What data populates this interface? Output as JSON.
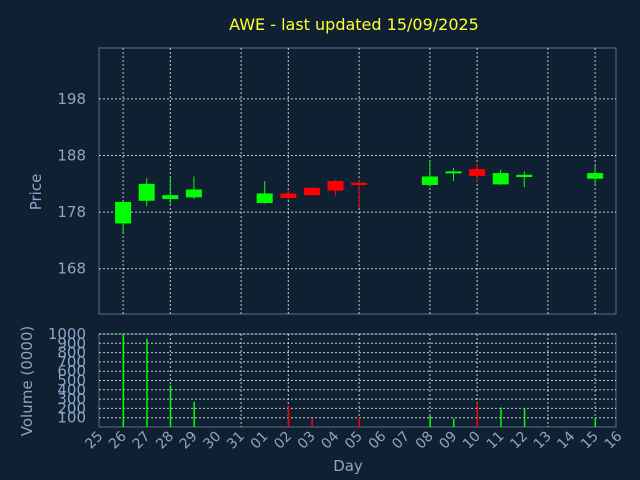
{
  "chart_data": [
    {
      "type": "candlestick",
      "title": "AWE - last updated 15/09/2025",
      "ylabel": "Price",
      "ylim": [
        160,
        207
      ],
      "yticks": [
        168,
        178,
        188,
        198
      ],
      "grid": true,
      "colors": {
        "up": "#00ff00",
        "down": "#ff0000"
      },
      "categories": [
        "25",
        "26",
        "27",
        "28",
        "29",
        "30",
        "31",
        "01",
        "02",
        "03",
        "04",
        "05",
        "06",
        "07",
        "08",
        "09",
        "10",
        "11",
        "12",
        "13",
        "14",
        "15",
        "16"
      ],
      "candles": [
        {
          "day": "26",
          "open": 176,
          "high": 180,
          "low": 174.5,
          "close": 179.8
        },
        {
          "day": "27",
          "open": 180,
          "high": 184,
          "low": 179,
          "close": 183
        },
        {
          "day": "28",
          "open": 180.3,
          "high": 184,
          "low": 179.5,
          "close": 181
        },
        {
          "day": "29",
          "open": 180.6,
          "high": 184.3,
          "low": 180.3,
          "close": 182
        },
        {
          "day": "01",
          "open": 179.6,
          "high": 183.5,
          "low": 179.5,
          "close": 181.3
        },
        {
          "day": "02",
          "open": 181.3,
          "high": 182,
          "low": 180.2,
          "close": 180.5
        },
        {
          "day": "03",
          "open": 182.3,
          "high": 182.5,
          "low": 180.8,
          "close": 181
        },
        {
          "day": "04",
          "open": 183.5,
          "high": 183.7,
          "low": 180.8,
          "close": 181.8
        },
        {
          "day": "05",
          "open": 183.2,
          "high": 183.7,
          "low": 178.7,
          "close": 182.8
        },
        {
          "day": "08",
          "open": 182.8,
          "high": 187,
          "low": 182.5,
          "close": 184.3
        },
        {
          "day": "09",
          "open": 184.9,
          "high": 185.8,
          "low": 183.5,
          "close": 185.2
        },
        {
          "day": "10",
          "open": 185.6,
          "high": 186.6,
          "low": 183.3,
          "close": 184.4
        },
        {
          "day": "11",
          "open": 182.9,
          "high": 185.5,
          "low": 182.8,
          "close": 184.9
        },
        {
          "day": "12",
          "open": 184.2,
          "high": 185.2,
          "low": 182.4,
          "close": 184.6
        },
        {
          "day": "15",
          "open": 183.9,
          "high": 186.2,
          "low": 183,
          "close": 184.9
        }
      ]
    },
    {
      "type": "bar",
      "ylabel": "Volume (0000)",
      "xlabel": "Day",
      "ylim": [
        0,
        1000
      ],
      "yticks": [
        100,
        200,
        300,
        400,
        500,
        600,
        700,
        800,
        900,
        1000
      ],
      "grid": true,
      "categories": [
        "25",
        "26",
        "27",
        "28",
        "29",
        "30",
        "31",
        "01",
        "02",
        "03",
        "04",
        "05",
        "06",
        "07",
        "08",
        "09",
        "10",
        "11",
        "12",
        "13",
        "14",
        "15",
        "16"
      ],
      "bars": [
        {
          "day": "26",
          "value": 1000,
          "color": "#00ff00"
        },
        {
          "day": "27",
          "value": 950,
          "color": "#00ff00"
        },
        {
          "day": "28",
          "value": 450,
          "color": "#00ff00"
        },
        {
          "day": "29",
          "value": 270,
          "color": "#00ff00"
        },
        {
          "day": "02",
          "value": 230,
          "color": "#ff0000"
        },
        {
          "day": "03",
          "value": 90,
          "color": "#ff0000"
        },
        {
          "day": "05",
          "value": 100,
          "color": "#ff0000"
        },
        {
          "day": "08",
          "value": 120,
          "color": "#00ff00"
        },
        {
          "day": "09",
          "value": 90,
          "color": "#00ff00"
        },
        {
          "day": "10",
          "value": 260,
          "color": "#ff0000"
        },
        {
          "day": "11",
          "value": 210,
          "color": "#00ff00"
        },
        {
          "day": "12",
          "value": 200,
          "color": "#00ff00"
        },
        {
          "day": "15",
          "value": 100,
          "color": "#00ff00"
        }
      ]
    }
  ]
}
